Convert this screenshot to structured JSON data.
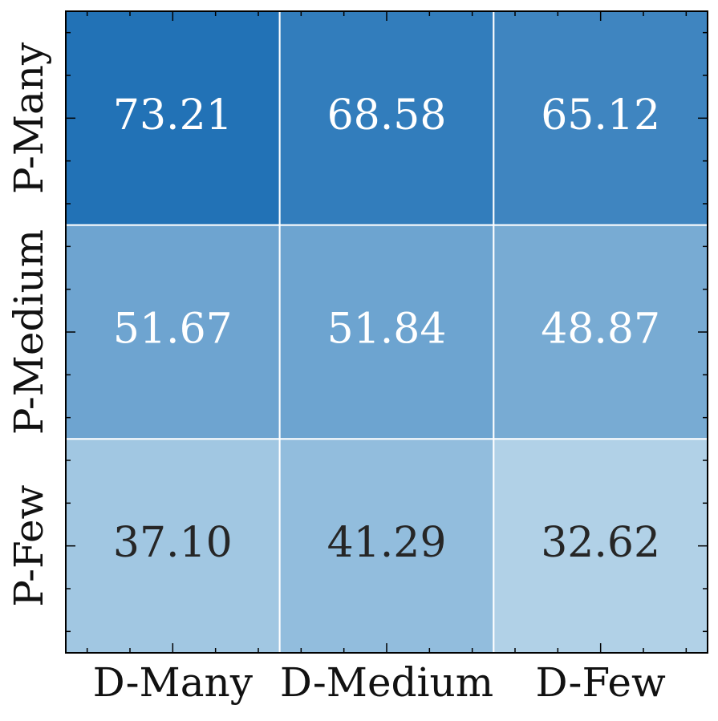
{
  "chart_data": {
    "type": "heatmap",
    "x_categories": [
      "D-Many",
      "D-Medium",
      "D-Few"
    ],
    "y_categories": [
      "P-Many",
      "P-Medium",
      "P-Few"
    ],
    "values": [
      [
        73.21,
        68.58,
        65.12
      ],
      [
        51.67,
        51.84,
        48.87
      ],
      [
        37.1,
        41.29,
        32.62
      ]
    ],
    "value_labels": [
      [
        "73.21",
        "68.58",
        "65.12"
      ],
      [
        "51.67",
        "51.84",
        "48.87"
      ],
      [
        "37.10",
        "41.29",
        "32.62"
      ]
    ],
    "colormap": [
      "#b1d1e7",
      "#2272b6"
    ],
    "text_colors": [
      "#262626",
      "#ffffff"
    ]
  }
}
